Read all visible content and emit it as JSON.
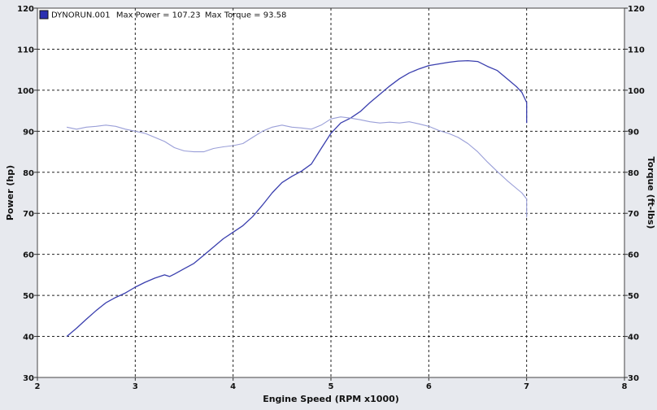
{
  "chart_data": {
    "type": "line",
    "title": "",
    "xlabel": "Engine Speed (RPM x1000)",
    "ylabel": "Power (hp)",
    "y2label": "Torque (ft-lbs)",
    "xlim": [
      2,
      8
    ],
    "ylim": [
      30,
      120
    ],
    "y2lim": [
      30,
      120
    ],
    "x_ticks": [
      2,
      3,
      4,
      5,
      6,
      7,
      8
    ],
    "y_ticks": [
      30,
      40,
      50,
      60,
      70,
      80,
      90,
      100,
      110,
      120
    ],
    "grid": true,
    "legend_location": "top-left",
    "legend": {
      "run": "DYNORUN.001",
      "max_power_text": "Max Power = 107.23",
      "max_torque_text": "Max Torque = 93.58"
    },
    "series": [
      {
        "name": "Power",
        "axis": "left",
        "color": "#3a3fae",
        "x": [
          2.3,
          2.4,
          2.5,
          2.6,
          2.7,
          2.8,
          2.9,
          3.0,
          3.1,
          3.2,
          3.3,
          3.35,
          3.4,
          3.5,
          3.6,
          3.7,
          3.8,
          3.9,
          4.0,
          4.1,
          4.2,
          4.3,
          4.4,
          4.5,
          4.6,
          4.7,
          4.8,
          4.9,
          5.0,
          5.1,
          5.2,
          5.3,
          5.4,
          5.5,
          5.6,
          5.7,
          5.8,
          5.9,
          6.0,
          6.1,
          6.2,
          6.3,
          6.4,
          6.5,
          6.6,
          6.7,
          6.8,
          6.9,
          6.95,
          7.0,
          7.0
        ],
        "y": [
          40.0,
          42.0,
          44.2,
          46.3,
          48.2,
          49.5,
          50.6,
          52.0,
          53.2,
          54.2,
          55.0,
          54.6,
          55.2,
          56.5,
          57.8,
          59.8,
          61.8,
          63.8,
          65.4,
          67.0,
          69.2,
          72.0,
          75.0,
          77.5,
          79.0,
          80.3,
          82.0,
          85.8,
          89.5,
          92.0,
          93.2,
          94.8,
          97.0,
          99.0,
          101.0,
          102.8,
          104.2,
          105.2,
          106.0,
          106.4,
          106.8,
          107.1,
          107.2,
          107.0,
          105.8,
          104.8,
          102.8,
          100.8,
          99.5,
          97.0,
          92.0
        ]
      },
      {
        "name": "Torque",
        "axis": "right",
        "color": "#9a9fd8",
        "x": [
          2.3,
          2.4,
          2.5,
          2.6,
          2.7,
          2.8,
          2.9,
          3.0,
          3.1,
          3.2,
          3.3,
          3.4,
          3.5,
          3.6,
          3.7,
          3.8,
          3.9,
          4.0,
          4.1,
          4.2,
          4.3,
          4.4,
          4.5,
          4.6,
          4.7,
          4.8,
          4.9,
          5.0,
          5.1,
          5.2,
          5.3,
          5.4,
          5.5,
          5.6,
          5.7,
          5.8,
          5.9,
          6.0,
          6.1,
          6.2,
          6.3,
          6.4,
          6.5,
          6.6,
          6.7,
          6.8,
          6.9,
          6.95,
          7.0,
          7.0
        ],
        "y": [
          91.0,
          90.5,
          91.0,
          91.2,
          91.5,
          91.2,
          90.5,
          90.0,
          89.5,
          88.5,
          87.5,
          86.0,
          85.2,
          85.0,
          85.0,
          85.8,
          86.2,
          86.5,
          87.0,
          88.5,
          90.0,
          91.0,
          91.5,
          91.0,
          90.8,
          90.5,
          91.5,
          93.0,
          93.5,
          93.2,
          92.8,
          92.3,
          92.0,
          92.2,
          92.0,
          92.3,
          91.8,
          91.2,
          90.2,
          89.5,
          88.5,
          87.0,
          85.0,
          82.5,
          80.2,
          78.0,
          76.0,
          75.0,
          73.5,
          69.0
        ]
      }
    ]
  }
}
